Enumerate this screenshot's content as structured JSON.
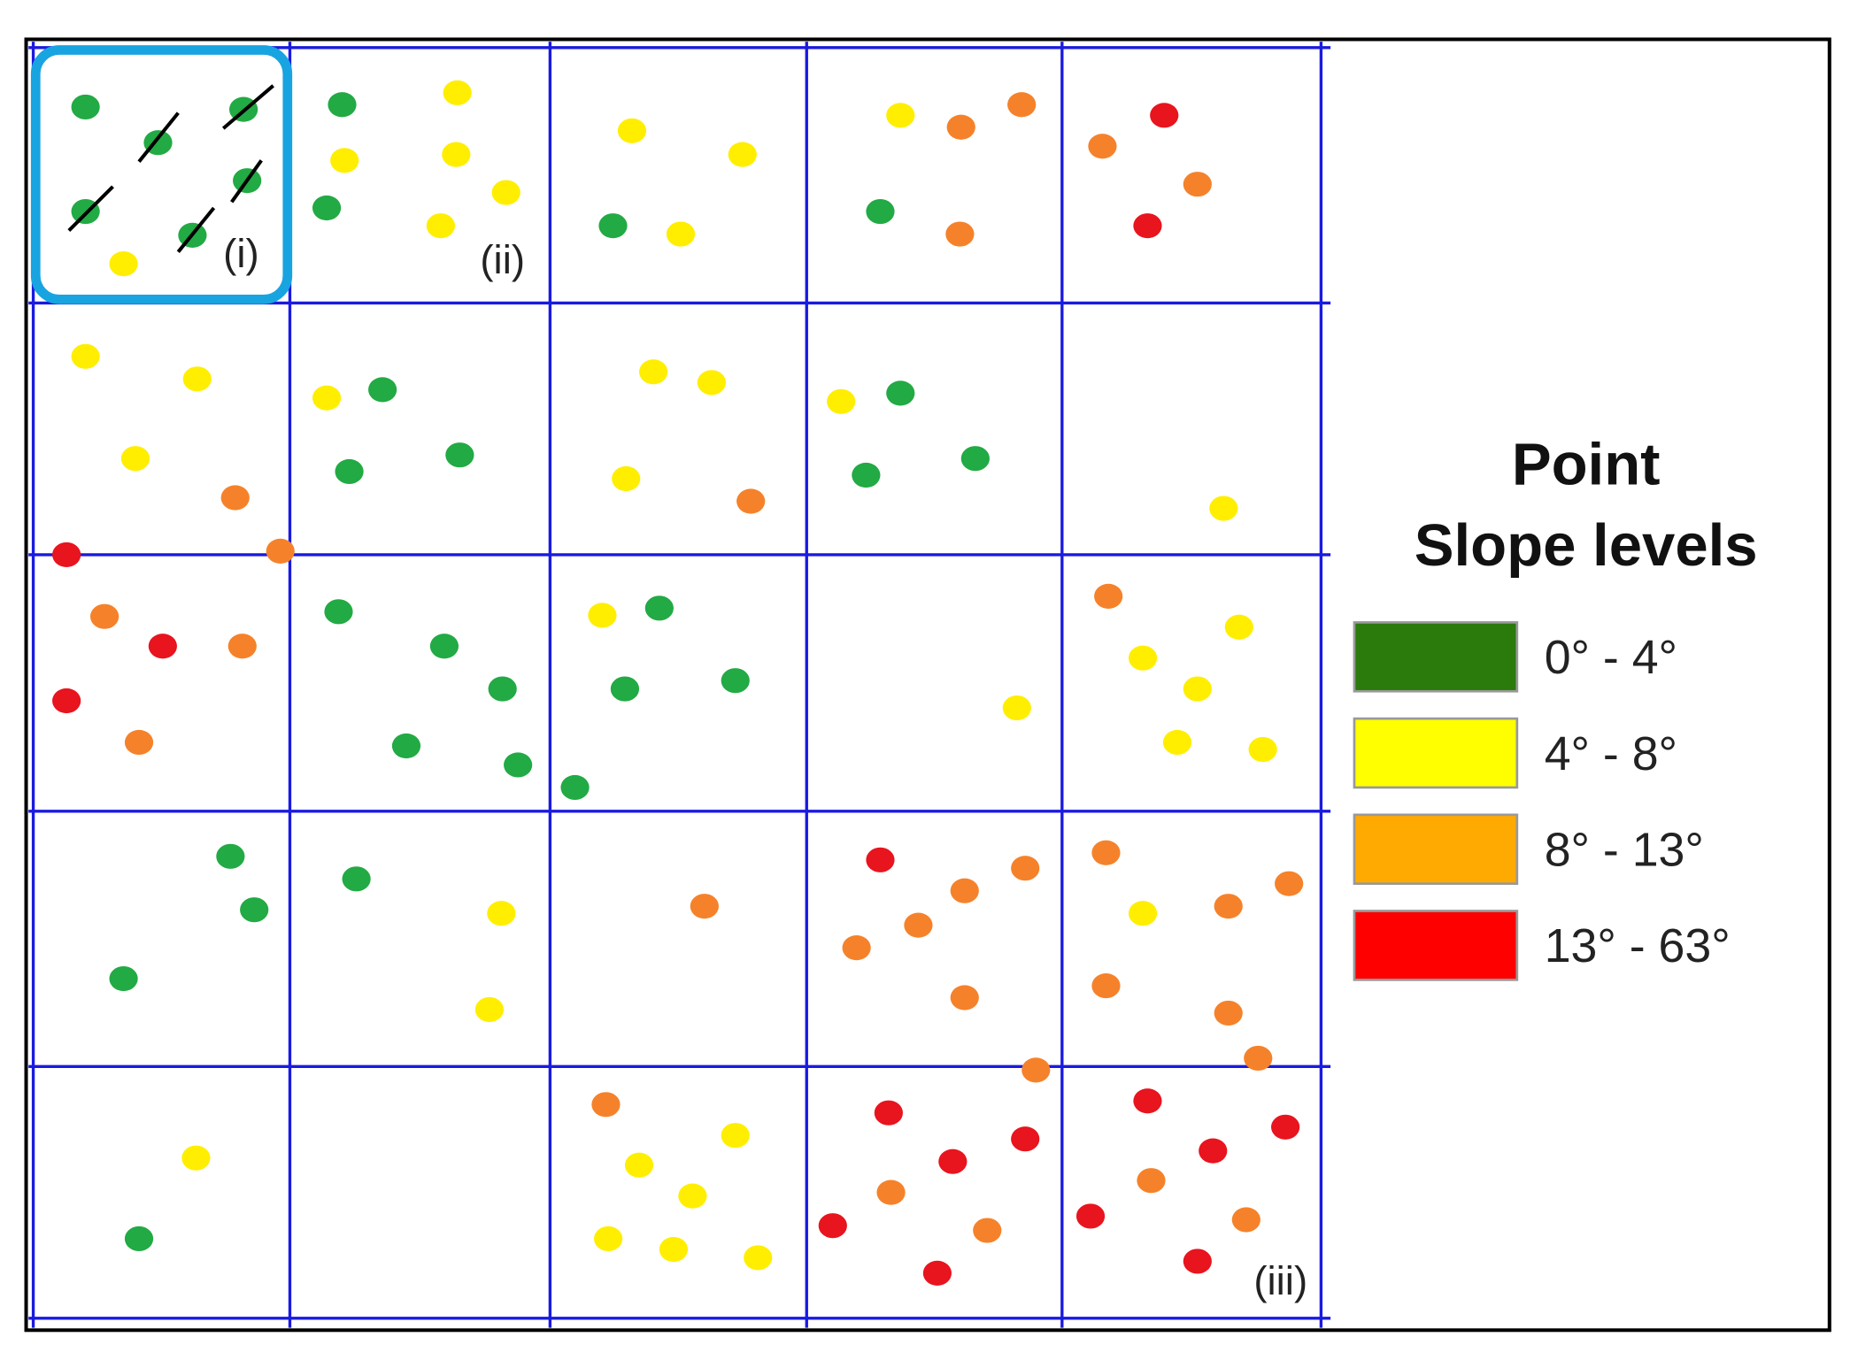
{
  "panel_labels": [
    "(i)",
    "(ii)",
    "(iii)"
  ],
  "legend": {
    "title": [
      "Point",
      "Slope levels"
    ],
    "items": [
      {
        "label": "0° - 4°",
        "color": "#2a7a0c"
      },
      {
        "label": "4° - 8°",
        "color": "#ffff00"
      },
      {
        "label": "8° - 13°",
        "color": "#ffaa00"
      },
      {
        "label": "13° - 63°",
        "color": "#ff0000"
      }
    ]
  }
}
